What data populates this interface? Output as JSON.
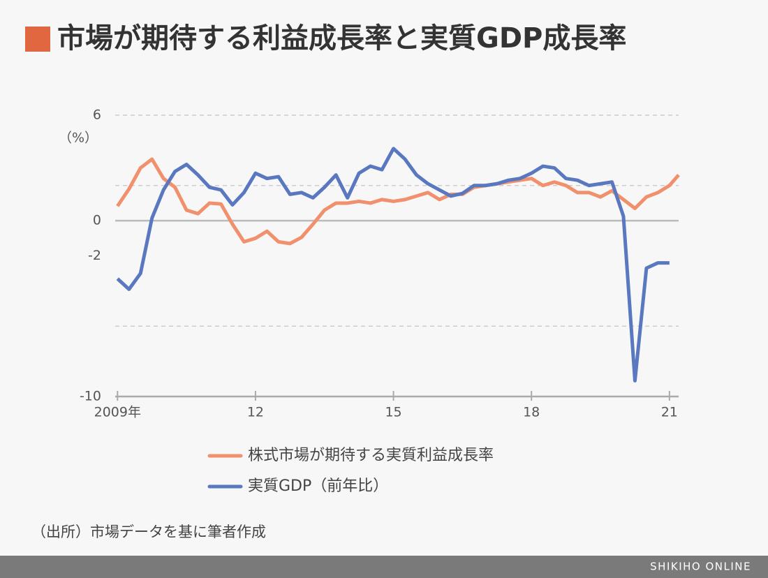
{
  "chart_data": {
    "type": "line",
    "title": "市場が期待する利益成長率と実質GDP成長率",
    "y_unit_label": "（%）",
    "source": "（出所）市場データを基に筆者作成",
    "footer": "SHIKIHO ONLINE",
    "x": [
      2009,
      2009.25,
      2009.5,
      2009.75,
      2010,
      2010.25,
      2010.5,
      2010.75,
      2011,
      2011.25,
      2011.5,
      2011.75,
      2012,
      2012.25,
      2012.5,
      2012.75,
      2013,
      2013.25,
      2013.5,
      2013.75,
      2014,
      2014.25,
      2014.5,
      2014.75,
      2015,
      2015.25,
      2015.5,
      2015.75,
      2016,
      2016.25,
      2016.5,
      2016.75,
      2017,
      2017.25,
      2017.5,
      2017.75,
      2018,
      2018.25,
      2018.5,
      2018.75,
      2019,
      2019.25,
      2019.5,
      2019.75,
      2020,
      2020.25,
      2020.5,
      2020.75,
      2021,
      2021.2
    ],
    "series": [
      {
        "name": "株式市場が期待する実質利益成長率",
        "color": "#f0906c",
        "values": [
          0.83,
          1.8,
          3.0,
          3.5,
          2.4,
          1.9,
          0.6,
          0.4,
          1.0,
          0.95,
          -0.2,
          -1.2,
          -1.0,
          -0.6,
          -1.2,
          -1.3,
          -0.95,
          -0.2,
          0.6,
          1.0,
          1.0,
          1.1,
          1.0,
          1.2,
          1.1,
          1.2,
          1.4,
          1.6,
          1.2,
          1.5,
          1.5,
          1.9,
          2.0,
          2.1,
          2.2,
          2.3,
          2.4,
          2.0,
          2.2,
          2.0,
          1.6,
          1.6,
          1.35,
          1.7,
          1.2,
          0.7,
          1.35,
          1.6,
          2.0,
          2.6
        ]
      },
      {
        "name": "実質GDP（前年比）",
        "color": "#5a78c0",
        "values": [
          -3.3,
          -3.9,
          -3.0,
          0.15,
          1.75,
          2.8,
          3.2,
          2.6,
          1.9,
          1.75,
          0.9,
          1.6,
          2.7,
          2.4,
          2.5,
          1.5,
          1.6,
          1.3,
          1.9,
          2.6,
          1.3,
          2.7,
          3.1,
          2.9,
          4.1,
          3.5,
          2.6,
          2.1,
          1.75,
          1.4,
          1.55,
          2.0,
          2.0,
          2.1,
          2.3,
          2.4,
          2.7,
          3.1,
          3.0,
          2.4,
          2.3,
          2.0,
          2.1,
          2.2,
          0.25,
          -9.1,
          -2.7,
          -2.4,
          -2.4,
          null
        ]
      }
    ],
    "xlim": [
      2008.95,
      2021.2
    ],
    "xticks": [
      {
        "value": 2009,
        "label": "2009年"
      },
      {
        "value": 2012,
        "label": "12"
      },
      {
        "value": 2015,
        "label": "15"
      },
      {
        "value": 2018,
        "label": "18"
      },
      {
        "value": 2021,
        "label": "21"
      }
    ],
    "ylim": [
      -10,
      6
    ],
    "yticks": [
      -10,
      -2,
      0,
      6
    ],
    "ygrid": [
      6,
      2,
      -6
    ],
    "baseline": 0,
    "title_marker_color": "#e0673f"
  }
}
